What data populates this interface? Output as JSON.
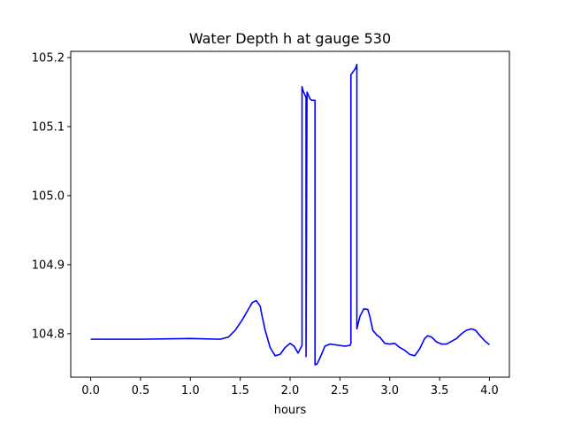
{
  "chart_data": {
    "type": "line",
    "title": "Water Depth h at gauge 530",
    "xlabel": "hours",
    "ylabel": "",
    "xlim": [
      -0.2,
      4.2
    ],
    "ylim": [
      104.737,
      105.209
    ],
    "xticks": [
      0.0,
      0.5,
      1.0,
      1.5,
      2.0,
      2.5,
      3.0,
      3.5,
      4.0
    ],
    "xtick_labels": [
      "0.0",
      "0.5",
      "1.0",
      "1.5",
      "2.0",
      "2.5",
      "3.0",
      "3.5",
      "4.0"
    ],
    "yticks": [
      104.8,
      104.9,
      105.0,
      105.1,
      105.2
    ],
    "ytick_labels": [
      "104.8",
      "104.9",
      "105.0",
      "105.1",
      "105.2"
    ],
    "grid": false,
    "series": [
      {
        "color": "#0000ff",
        "x": [
          0.0,
          0.5,
          1.0,
          1.3,
          1.38,
          1.45,
          1.52,
          1.58,
          1.62,
          1.66,
          1.7,
          1.72,
          1.75,
          1.8,
          1.85,
          1.9,
          1.95,
          2.0,
          2.04,
          2.08,
          2.12,
          2.12,
          2.13,
          2.16,
          2.16,
          2.17,
          2.2,
          2.22,
          2.25,
          2.25,
          2.27,
          2.3,
          2.35,
          2.4,
          2.45,
          2.5,
          2.55,
          2.6,
          2.61,
          2.61,
          2.66,
          2.67,
          2.67,
          2.7,
          2.74,
          2.78,
          2.8,
          2.83,
          2.87,
          2.9,
          2.95,
          3.0,
          3.05,
          3.1,
          3.15,
          3.2,
          3.25,
          3.3,
          3.35,
          3.38,
          3.42,
          3.47,
          3.52,
          3.57,
          3.62,
          3.67,
          3.72,
          3.77,
          3.82,
          3.86,
          3.9,
          3.95,
          4.0
        ],
        "y": [
          104.792,
          104.792,
          104.793,
          104.792,
          104.795,
          104.805,
          104.82,
          104.835,
          104.845,
          104.848,
          104.84,
          104.825,
          104.805,
          104.78,
          104.768,
          104.77,
          104.78,
          104.786,
          104.782,
          104.772,
          104.783,
          105.158,
          105.152,
          105.142,
          104.767,
          105.15,
          105.14,
          105.138,
          105.138,
          104.755,
          104.756,
          104.765,
          104.782,
          104.785,
          104.784,
          104.783,
          104.782,
          104.783,
          104.786,
          105.175,
          105.185,
          105.19,
          104.807,
          104.825,
          104.836,
          104.835,
          104.825,
          104.805,
          104.798,
          104.795,
          104.786,
          104.785,
          104.786,
          104.78,
          104.776,
          104.77,
          104.768,
          104.778,
          104.793,
          104.797,
          104.795,
          104.788,
          104.785,
          104.785,
          104.789,
          104.793,
          104.8,
          104.805,
          104.807,
          104.805,
          104.798,
          104.79,
          104.784
        ]
      }
    ]
  }
}
